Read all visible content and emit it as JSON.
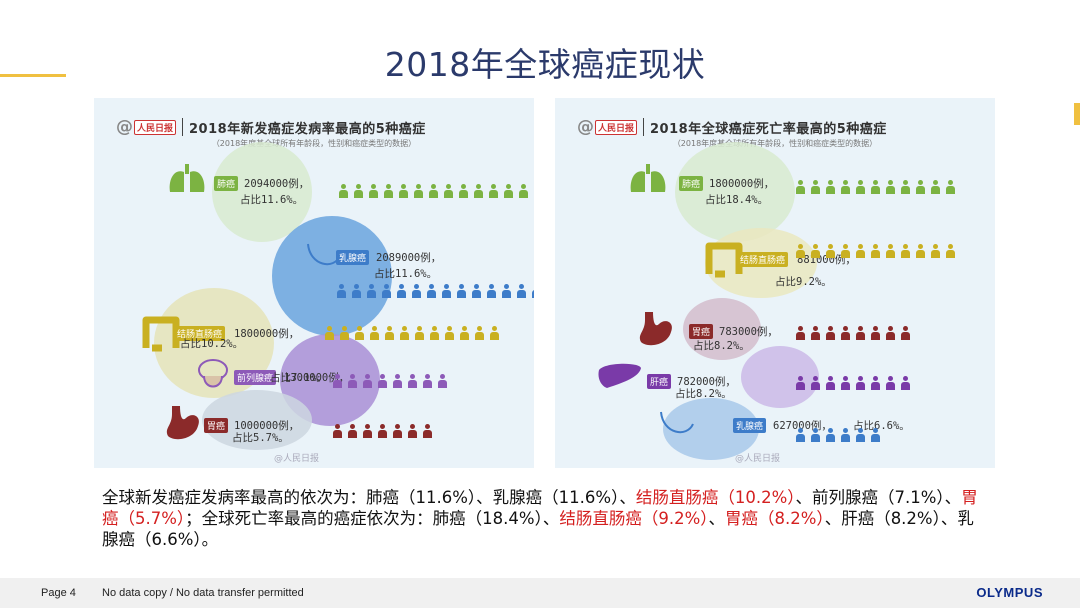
{
  "slide": {
    "title": "2018年全球癌症现状",
    "summary_parts": [
      {
        "text": "全球新发癌症发病率最高的依次为：肺癌（11.6%）、乳腺癌（11.6%）、",
        "hl": false
      },
      {
        "text": "结肠直肠癌（10.2%）",
        "hl": true
      },
      {
        "text": "、前列腺癌（7.1%）、",
        "hl": false
      },
      {
        "text": "胃癌（5.7%）",
        "hl": true
      },
      {
        "text": "；全球死亡率最高的癌症依次为：肺癌（18.4%）、",
        "hl": false
      },
      {
        "text": "结肠直肠癌（9.2%）",
        "hl": true
      },
      {
        "text": "、",
        "hl": false
      },
      {
        "text": "胃癌（8.2%）",
        "hl": true
      },
      {
        "text": "、肝癌（8.2%）、乳腺癌（6.6%）。",
        "hl": false
      }
    ]
  },
  "footer": {
    "page": "Page 4",
    "notice": "No data copy / No data transfer permitted",
    "brand": "OLYMPUS"
  },
  "left_panel": {
    "logo": "人民日报",
    "title": "2018年新发癌症发病率最高的5种癌症",
    "subtitle": "（2018年度基全球所有年龄段，性别和癌症类型的数据）",
    "watermark": "@人民日报",
    "rows": [
      {
        "name": "肺癌",
        "count": "2094000例，",
        "pct": "占比11.6%。",
        "color": "#7cb342",
        "people": 14
      },
      {
        "name": "乳腺癌",
        "count": "2089000例，",
        "pct": "占比11.6%。",
        "color": "#3d7cc9",
        "people": 14
      },
      {
        "name": "结肠直肠癌",
        "count": "1800000例，",
        "pct": "占比10.2%。",
        "color": "#c9b021",
        "people": 12
      },
      {
        "name": "前列腺癌",
        "count": "1300000例，",
        "pct": "占比7.1%。",
        "color": "#8d5ab8",
        "people": 8
      },
      {
        "name": "胃癌",
        "count": "1000000例，",
        "pct": "占比5.7%。",
        "color": "#8b2a2a",
        "people": 7
      }
    ]
  },
  "right_panel": {
    "logo": "人民日报",
    "title": "2018年全球癌症死亡率最高的5种癌症",
    "subtitle": "（2018年度基全球所有年龄段，性别和癌症类型的数据）",
    "watermark": "@人民日报",
    "rows": [
      {
        "name": "肺癌",
        "count": "1800000例，",
        "pct": "占比18.4%。",
        "color": "#7cb342",
        "people": 11
      },
      {
        "name": "结肠直肠癌",
        "count": "881000例，",
        "pct": "占比9.2%。",
        "color": "#c9b021",
        "people": 11
      },
      {
        "name": "胃癌",
        "count": "783000例，",
        "pct": "占比8.2%。",
        "color": "#8b2a2a",
        "people": 8
      },
      {
        "name": "肝癌",
        "count": "782000例，",
        "pct": "占比8.2%。",
        "color": "#7a3aa8",
        "people": 8
      },
      {
        "name": "乳腺癌",
        "count": "627000例，",
        "pct": "占比6.6%。",
        "color": "#3d7cc9",
        "people": 6
      }
    ]
  },
  "colors": {
    "title": "#2b3a6b",
    "accent": "#f0c040",
    "highlight": "#d42020",
    "panel_bg": "#eaf3f9",
    "brand": "#0a2a8a"
  }
}
